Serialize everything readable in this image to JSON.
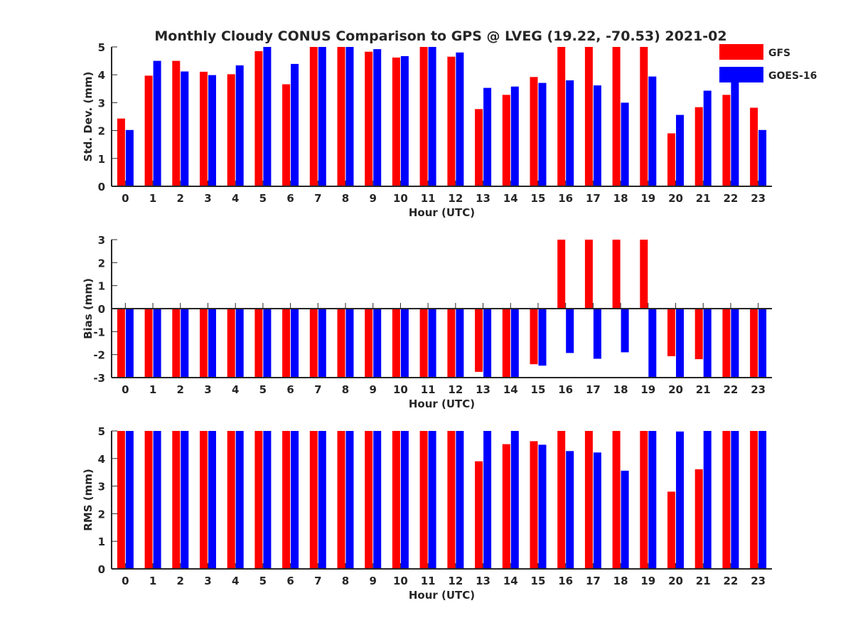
{
  "chart_data": [
    {
      "type": "bar",
      "title": "Monthly Cloudy CONUS Comparison to GPS @ LVEG (19.22, -70.53) 2021-02",
      "xlabel": "Hour (UTC)",
      "ylabel": "Std. Dev. (mm)",
      "ylim": [
        0,
        5
      ],
      "yticks": [
        0,
        1,
        2,
        3,
        4,
        5
      ],
      "categories": [
        "0",
        "1",
        "2",
        "3",
        "4",
        "5",
        "6",
        "7",
        "8",
        "9",
        "10",
        "11",
        "12",
        "13",
        "14",
        "15",
        "16",
        "17",
        "18",
        "19",
        "20",
        "21",
        "22",
        "23"
      ],
      "series": [
        {
          "name": "GFS",
          "color": "#ff0000",
          "values": [
            2.43,
            3.97,
            4.5,
            4.11,
            4.02,
            4.85,
            3.66,
            5,
            5,
            4.83,
            4.62,
            5,
            4.65,
            2.77,
            3.28,
            3.92,
            5,
            5,
            5,
            5,
            1.9,
            2.84,
            3.28,
            2.82
          ]
        },
        {
          "name": "GOES-16",
          "color": "#0000ff",
          "values": [
            2.02,
            4.5,
            4.12,
            3.99,
            4.34,
            5,
            4.39,
            5,
            5,
            4.92,
            4.67,
            5,
            4.8,
            3.53,
            3.58,
            3.71,
            3.8,
            3.62,
            3.0,
            3.94,
            2.56,
            3.43,
            4.02,
            2.02
          ]
        }
      ],
      "legend": "top-right",
      "grid": false
    },
    {
      "type": "bar",
      "xlabel": "Hour (UTC)",
      "ylabel": "Bias (mm)",
      "ylim": [
        -3,
        3
      ],
      "yticks": [
        -3,
        -2,
        -1,
        0,
        1,
        2,
        3
      ],
      "categories": [
        "0",
        "1",
        "2",
        "3",
        "4",
        "5",
        "6",
        "7",
        "8",
        "9",
        "10",
        "11",
        "12",
        "13",
        "14",
        "15",
        "16",
        "17",
        "18",
        "19",
        "20",
        "21",
        "22",
        "23"
      ],
      "series": [
        {
          "name": "GFS",
          "color": "#ff0000",
          "values": [
            -3,
            -3,
            -3,
            -3,
            -3,
            -3,
            -3,
            -3,
            -3,
            -3,
            -3,
            -3,
            -3,
            -2.75,
            -3,
            -2.42,
            3,
            3,
            3,
            3,
            -2.07,
            -2.2,
            -3,
            -3
          ]
        },
        {
          "name": "GOES-16",
          "color": "#0000ff",
          "values": [
            -3,
            -3,
            -3,
            -3,
            -3,
            -3,
            -3,
            -3,
            -3,
            -3,
            -3,
            -3,
            -3,
            -3,
            -3,
            -2.48,
            -1.93,
            -2.18,
            -1.9,
            -3,
            -3,
            -3,
            -3,
            -3
          ]
        }
      ],
      "grid": false
    },
    {
      "type": "bar",
      "xlabel": "Hour (UTC)",
      "ylabel": "RMS (mm)",
      "ylim": [
        0,
        5
      ],
      "yticks": [
        0,
        1,
        2,
        3,
        4,
        5
      ],
      "categories": [
        "0",
        "1",
        "2",
        "3",
        "4",
        "5",
        "6",
        "7",
        "8",
        "9",
        "10",
        "11",
        "12",
        "13",
        "14",
        "15",
        "16",
        "17",
        "18",
        "19",
        "20",
        "21",
        "22",
        "23"
      ],
      "series": [
        {
          "name": "GFS",
          "color": "#ff0000",
          "values": [
            5,
            5,
            5,
            5,
            5,
            5,
            5,
            5,
            5,
            5,
            5,
            5,
            5,
            3.9,
            4.52,
            4.63,
            5,
            5,
            5,
            5,
            2.8,
            3.61,
            5,
            5
          ]
        },
        {
          "name": "GOES-16",
          "color": "#0000ff",
          "values": [
            5,
            5,
            5,
            5,
            5,
            5,
            5,
            5,
            5,
            5,
            5,
            5,
            5,
            5,
            5,
            4.5,
            4.27,
            4.22,
            3.56,
            5,
            4.98,
            5,
            5,
            5
          ]
        }
      ],
      "grid": false
    }
  ]
}
